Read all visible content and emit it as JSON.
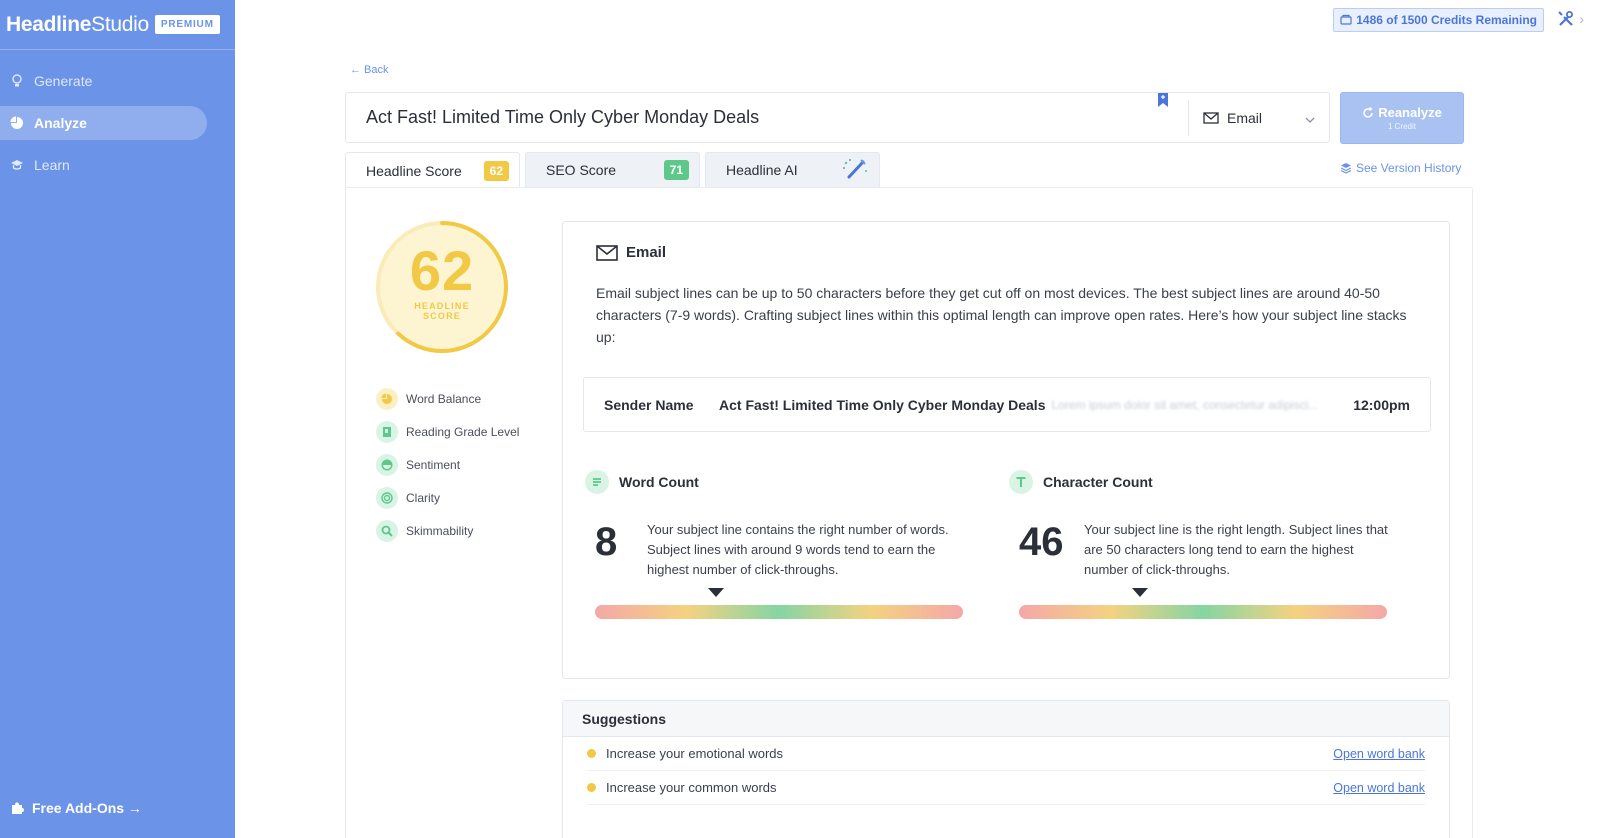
{
  "brand": {
    "name_bold": "Headline",
    "name_light": "Studio",
    "badge": "PREMIUM"
  },
  "sidebar": {
    "items": [
      {
        "label": "Generate",
        "icon": "lightbulb-icon",
        "active": false
      },
      {
        "label": "Analyze",
        "icon": "pie-chart-icon",
        "active": true
      },
      {
        "label": "Learn",
        "icon": "graduation-cap-icon",
        "active": false
      }
    ],
    "addons_label": "Free Add-Ons →"
  },
  "topbar": {
    "credits": "1486 of 1500 Credits Remaining"
  },
  "back_label": "← Back",
  "headline": {
    "text": "Act Fast! Limited Time Only Cyber Monday Deals",
    "type": "Email"
  },
  "reanalyze": {
    "label": "Reanalyze",
    "sub": "1 Credit"
  },
  "tabs": [
    {
      "label": "Headline Score",
      "score": "62"
    },
    {
      "label": "SEO Score",
      "score": "71"
    },
    {
      "label": "Headline AI"
    }
  ],
  "version_history": "See Version History",
  "score": {
    "value": "62",
    "label_line1": "HEADLINE",
    "label_line2": "SCORE",
    "fraction": 0.62
  },
  "metrics": [
    "Word Balance",
    "Reading Grade Level",
    "Sentiment",
    "Clarity",
    "Skimmability"
  ],
  "email_card": {
    "title": "Email",
    "description": "Email subject lines can be up to 50 characters before they get cut off on most devices. The best subject lines are around 40-50 characters (7-9 words). Crafting subject lines within this optimal length can improve open rates. Here’s how your subject line stacks up:",
    "preview": {
      "sender": "Sender Name",
      "subject": "Act Fast! Limited Time Only Cyber Monday Deals",
      "blurred": "Lorem ipsum dolor sit amet, consectetur adipisci...",
      "time": "12:00pm"
    },
    "word_count": {
      "title": "Word Count",
      "value": "8",
      "description": "Your subject line contains the right number of words. Subject lines with around 9 words tend to earn the highest number of click-throughs.",
      "marker_fraction": 0.33
    },
    "char_count": {
      "title": "Character Count",
      "value": "46",
      "description": "Your subject line is the right length. Subject lines that are 50 characters long tend to earn the highest number of click-throughs.",
      "marker_fraction": 0.33
    }
  },
  "suggestions": {
    "title": "Suggestions",
    "items": [
      {
        "text": "Increase your emotional words",
        "link": "Open word bank"
      },
      {
        "text": "Increase your common words",
        "link": "Open word bank"
      }
    ]
  },
  "colors": {
    "sidebar": "#6b93e8",
    "accent": "#4b76d8",
    "score_yellow": "#f1c945",
    "score_green": "#5cc98a"
  }
}
